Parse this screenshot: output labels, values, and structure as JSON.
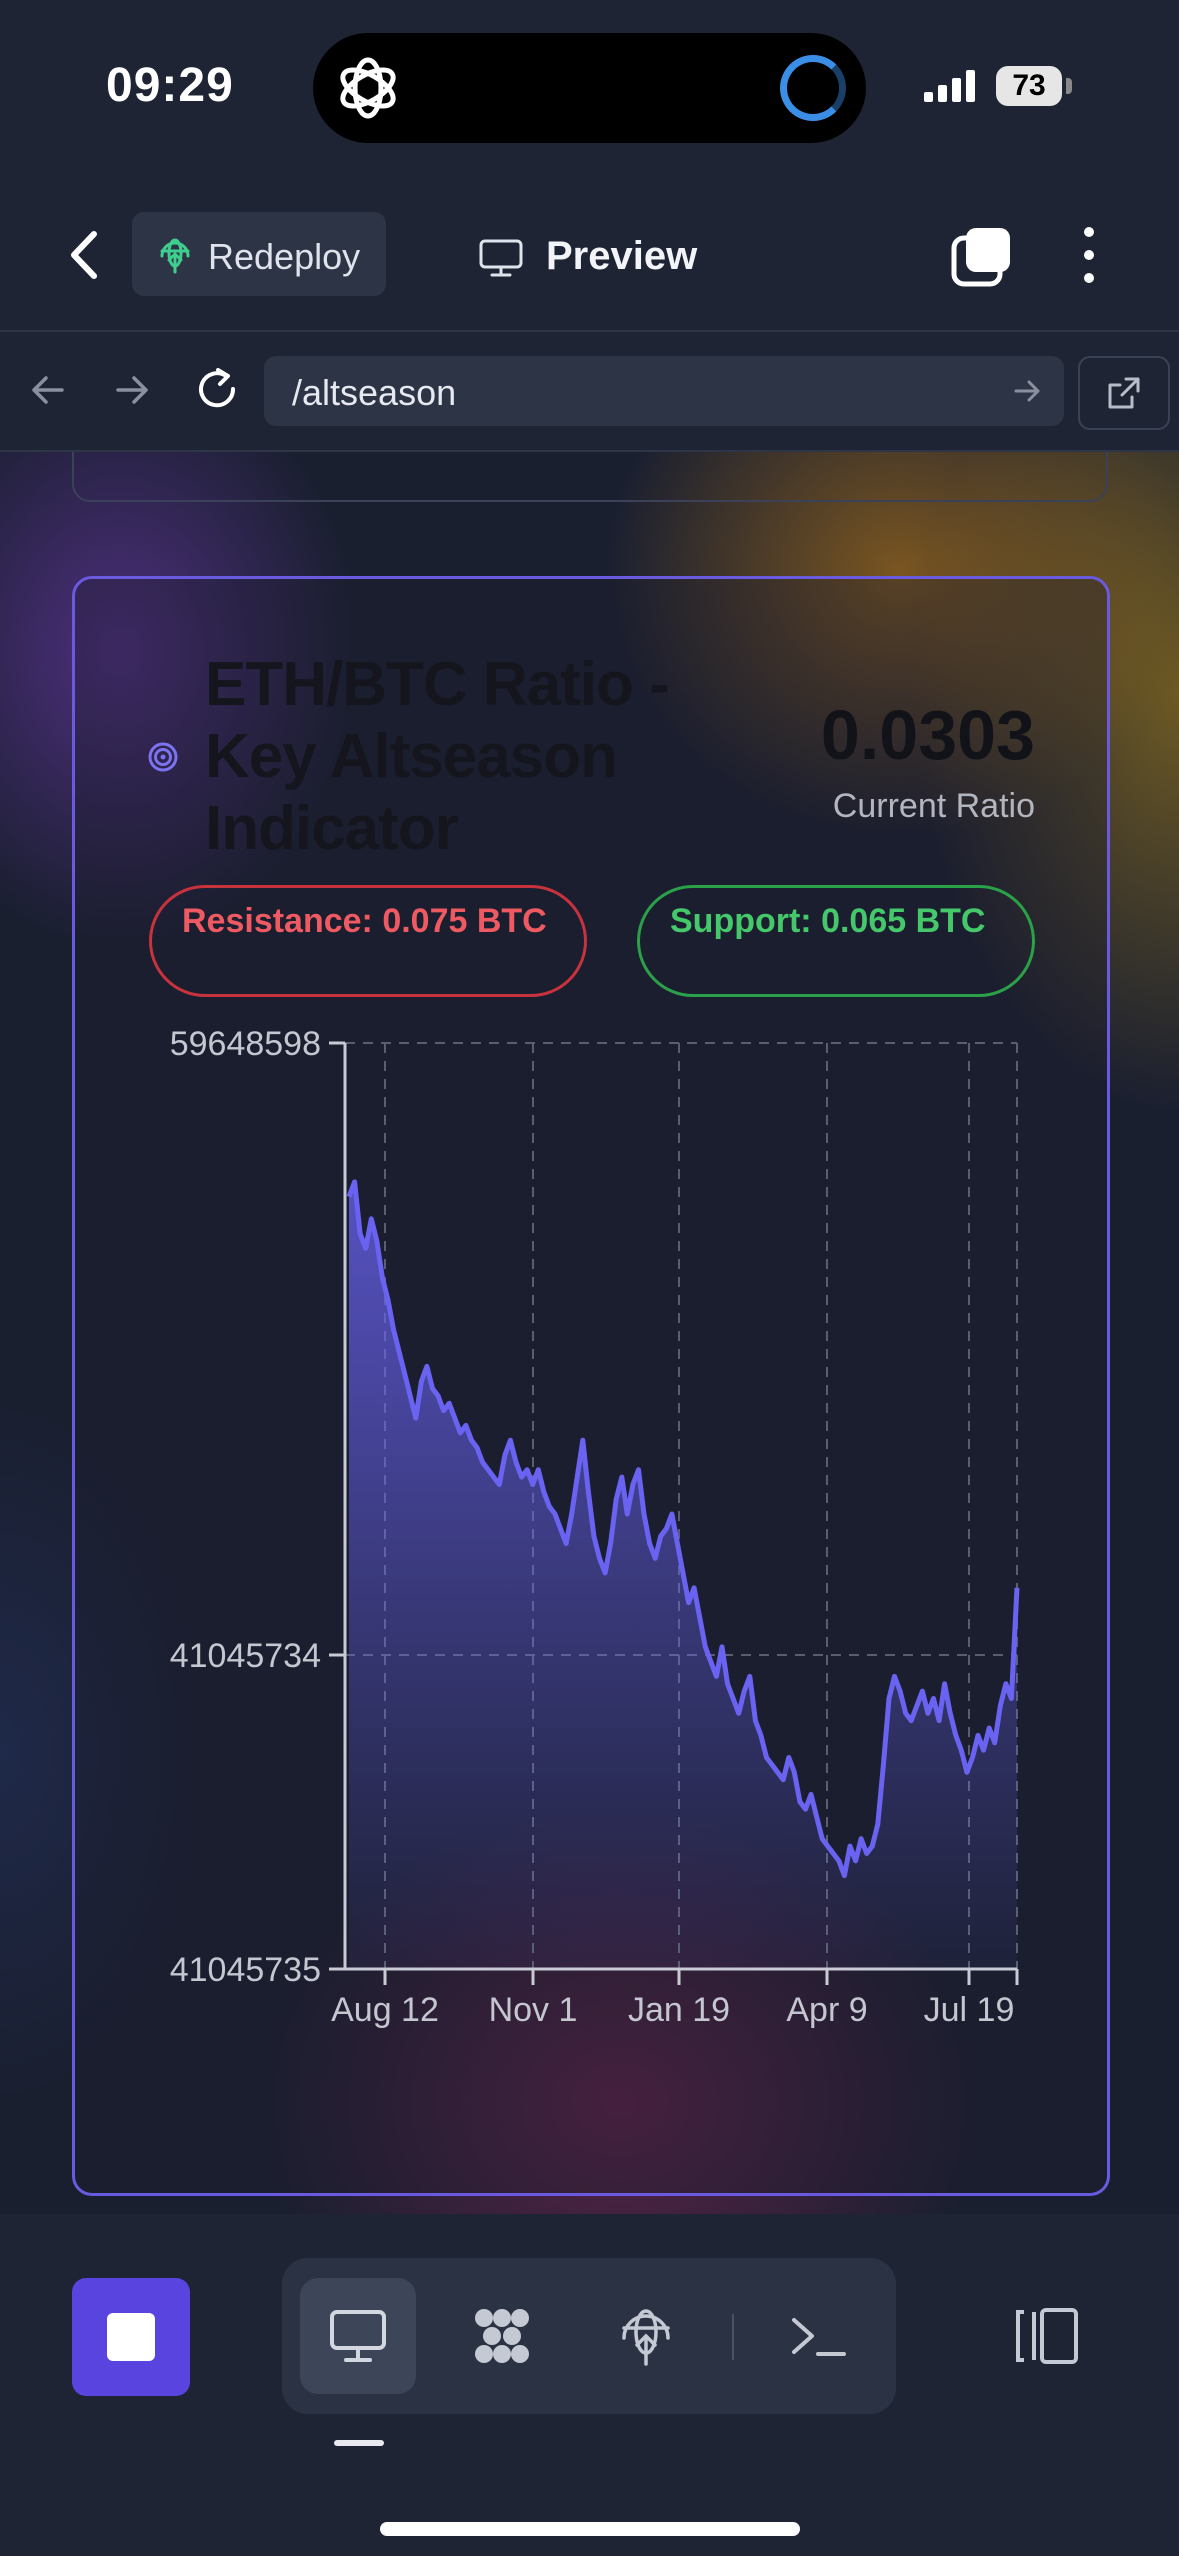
{
  "status_bar": {
    "time": "09:29",
    "battery": "73"
  },
  "app_bar": {
    "redeploy_label": "Redeploy",
    "preview_label": "Preview"
  },
  "url_bar": {
    "url": "/altseason"
  },
  "card": {
    "title": "ETH/BTC Ratio - Key Altseason Indicator",
    "current_value": "0.0303",
    "current_label": "Current Ratio",
    "resistance": "Resistance: 0.075 BTC",
    "support": "Support: 0.065 BTC"
  },
  "colors": {
    "accent": "#6a5ae0",
    "line": "#6a63f2",
    "resistance": "#ef5a62",
    "support": "#45c86a"
  },
  "chart_data": {
    "type": "area",
    "y_tick_labels": [
      "59648598",
      "41045734",
      "41045735"
    ],
    "x_tick_labels": [
      "Aug 12",
      "Nov 1",
      "Jan 19",
      "Apr 9",
      "Jul 19"
    ],
    "grid": true,
    "series": [
      {
        "values": [
          0.93,
          0.95,
          0.88,
          0.86,
          0.9,
          0.87,
          0.82,
          0.79,
          0.75,
          0.72,
          0.69,
          0.66,
          0.63,
          0.68,
          0.7,
          0.67,
          0.66,
          0.64,
          0.65,
          0.63,
          0.61,
          0.62,
          0.6,
          0.59,
          0.57,
          0.56,
          0.55,
          0.54,
          0.58,
          0.6,
          0.57,
          0.55,
          0.56,
          0.54,
          0.56,
          0.53,
          0.51,
          0.5,
          0.48,
          0.46,
          0.5,
          0.55,
          0.6,
          0.53,
          0.47,
          0.44,
          0.42,
          0.46,
          0.52,
          0.55,
          0.5,
          0.54,
          0.56,
          0.5,
          0.46,
          0.44,
          0.47,
          0.48,
          0.5,
          0.46,
          0.42,
          0.38,
          0.4,
          0.36,
          0.32,
          0.3,
          0.28,
          0.32,
          0.27,
          0.25,
          0.23,
          0.26,
          0.28,
          0.22,
          0.2,
          0.17,
          0.16,
          0.15,
          0.14,
          0.17,
          0.15,
          0.11,
          0.1,
          0.12,
          0.09,
          0.06,
          0.05,
          0.04,
          0.03,
          0.01,
          0.05,
          0.03,
          0.06,
          0.04,
          0.05,
          0.08,
          0.16,
          0.25,
          0.28,
          0.26,
          0.23,
          0.22,
          0.24,
          0.26,
          0.23,
          0.25,
          0.22,
          0.27,
          0.23,
          0.2,
          0.18,
          0.15,
          0.17,
          0.2,
          0.18,
          0.21,
          0.19,
          0.24,
          0.27,
          0.25,
          0.4
        ]
      }
    ]
  }
}
